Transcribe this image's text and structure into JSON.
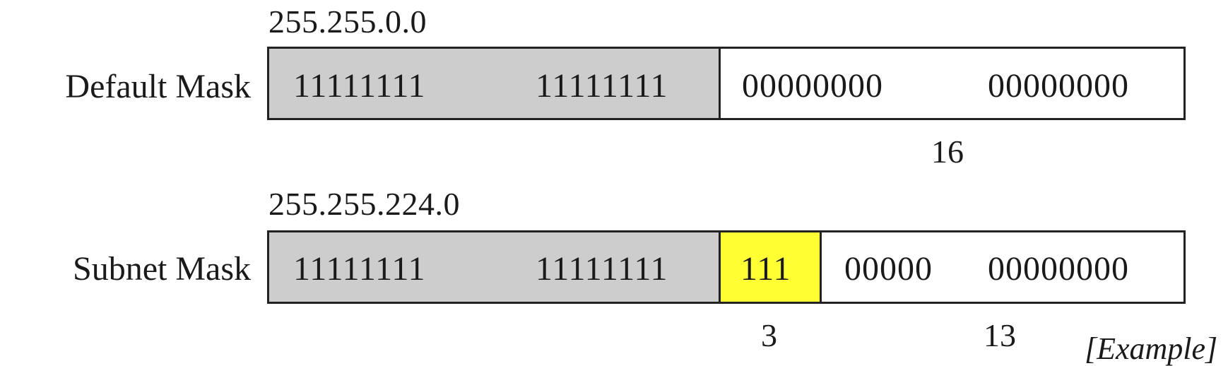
{
  "colors": {
    "network_fill": "#cdcdcd",
    "subnet_fill": "#ffff33",
    "host_fill": "#ffffff",
    "border": "#222222"
  },
  "default_mask": {
    "dotted": "255.255.0.0",
    "label": "Default Mask",
    "octets": [
      "11111111",
      "11111111",
      "00000000",
      "00000000"
    ],
    "host_bits_count": "16"
  },
  "subnet_mask": {
    "dotted": "255.255.224.0",
    "label": "Subnet Mask",
    "octet1": "11111111",
    "octet2": "11111111",
    "subnet_bits": "111",
    "host_bits_part": "00000",
    "octet4": "00000000",
    "subnet_bits_count": "3",
    "host_bits_count": "13"
  },
  "footnote": "[Example]"
}
